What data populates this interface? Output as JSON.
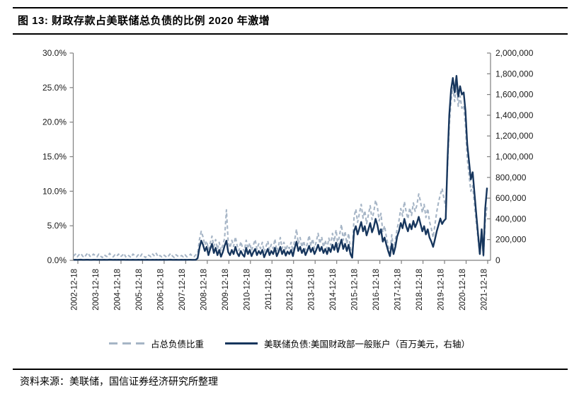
{
  "header": {
    "title": "图 13: 财政存款占美联储总负债的比例 2020 年激增"
  },
  "footer": {
    "source": "资料来源：美联储，国信证券经济研究所整理"
  },
  "chart_data": {
    "type": "line",
    "title": "财政存款占美联储总负债的比例 2020 年激增",
    "grid": false,
    "legend_position": "bottom",
    "x_start_year": 2002.958,
    "x_step_years": 0.083333,
    "x_tick_labels": [
      "2002-12-18",
      "2003-12-18",
      "2004-12-18",
      "2005-12-18",
      "2006-12-18",
      "2007-12-18",
      "2008-12-18",
      "2009-12-18",
      "2010-12-18",
      "2011-12-18",
      "2012-12-18",
      "2013-12-18",
      "2014-12-18",
      "2015-12-18",
      "2016-12-18",
      "2017-12-18",
      "2018-12-18",
      "2019-12-18",
      "2020-12-18",
      "2021-12-18"
    ],
    "left_axis": {
      "min": 0,
      "max": 30,
      "tick_labels": [
        "0.0%",
        "5.0%",
        "10.0%",
        "15.0%",
        "20.0%",
        "25.0%",
        "30.0%"
      ]
    },
    "right_axis": {
      "min": 0,
      "max": 2000000,
      "tick_labels": [
        "0",
        "200,000",
        "400,000",
        "600,000",
        "800,000",
        "1,000,000",
        "1,200,000",
        "1,400,000",
        "1,600,000",
        "1,800,000",
        "2,000,000"
      ]
    },
    "colors": {
      "dashed_series": "#a6b5c6",
      "solid_series": "#17365d",
      "axis": "#808080",
      "text": "#1a1a1a"
    },
    "series": [
      {
        "name": "占总负债比重",
        "axis": "left",
        "style": "dashed",
        "color": "#a6b5c6",
        "values": [
          0.6,
          0.9,
          0.5,
          0.8,
          1.0,
          0.6,
          0.4,
          0.8,
          1.1,
          0.6,
          0.5,
          0.9,
          0.7,
          0.5,
          0.9,
          0.6,
          0.4,
          0.8,
          0.6,
          0.5,
          1.0,
          0.7,
          0.5,
          0.8,
          0.6,
          0.9,
          0.5,
          0.7,
          1.0,
          0.5,
          0.8,
          0.6,
          0.4,
          0.9,
          0.7,
          0.5,
          0.8,
          0.5,
          0.9,
          0.6,
          0.4,
          0.8,
          0.7,
          0.5,
          0.9,
          0.6,
          1.0,
          0.5,
          0.7,
          0.5,
          0.8,
          0.6,
          0.4,
          0.7,
          1.0,
          0.6,
          0.4,
          0.8,
          0.6,
          0.5,
          0.7,
          0.5,
          0.8,
          0.5,
          0.6,
          0.9,
          0.6,
          0.5,
          0.8,
          1.0,
          3.0,
          4.2,
          3.4,
          2.2,
          2.8,
          1.6,
          2.5,
          3.5,
          2.0,
          3.0,
          1.6,
          2.6,
          1.4,
          2.2,
          3.2,
          7.3,
          2.6,
          1.8,
          2.9,
          2.0,
          3.4,
          2.1,
          1.4,
          2.7,
          1.8,
          1.3,
          2.9,
          1.7,
          2.5,
          1.4,
          2.2,
          3.0,
          1.6,
          2.4,
          1.7,
          2.6,
          1.2,
          2.0,
          2.8,
          1.5,
          2.3,
          1.7,
          3.1,
          1.3,
          2.1,
          3.3,
          1.7,
          2.6,
          1.4,
          2.2,
          1.7,
          2.6,
          1.3,
          3.0,
          4.5,
          2.4,
          3.3,
          1.9,
          2.8,
          1.5,
          2.4,
          3.6,
          2.1,
          3.1,
          1.7,
          2.7,
          3.9,
          2.4,
          3.4,
          1.9,
          2.9,
          1.7,
          3.2,
          2.2,
          3.9,
          2.7,
          4.4,
          2.2,
          3.7,
          5.2,
          2.9,
          4.2,
          2.4,
          3.9,
          1.7,
          0.8,
          6.3,
          7.4,
          5.5,
          6.8,
          8.1,
          6.1,
          7.2,
          5.3,
          6.6,
          7.9,
          5.9,
          7.0,
          8.7,
          7.7,
          5.7,
          6.8,
          4.1,
          5.0,
          3.4,
          2.1,
          1.0,
          3.7,
          1.4,
          3.0,
          4.6,
          5.7,
          7.5,
          6.4,
          8.5,
          7.0,
          6.0,
          7.6,
          6.5,
          8.3,
          7.1,
          8.0,
          9.6,
          8.5,
          6.9,
          8.1,
          6.2,
          7.5,
          5.6,
          4.6,
          3.3,
          5.1,
          7.0,
          8.4,
          9.5,
          10.4,
          9.0,
          7.7,
          13.5,
          19.5,
          23.2,
          25.0,
          23.0,
          25.3,
          22.3,
          23.8,
          22.0,
          22.4,
          19.5,
          14.8,
          12.3,
          10.0,
          10.8,
          8.1,
          5.6,
          3.1,
          0.7,
          3.5,
          0.6,
          5.6,
          7.9
        ]
      },
      {
        "name": "美联储负债:美国财政部一般账户（百万美元，右轴）",
        "axis": "right",
        "style": "solid",
        "color": "#17365d",
        "values": [
          5000,
          5500,
          4800,
          5200,
          6000,
          5100,
          4700,
          5300,
          5800,
          5000,
          4600,
          5400,
          5200,
          4900,
          5600,
          5100,
          4800,
          5500,
          5000,
          4700,
          5900,
          5200,
          4800,
          5300,
          5100,
          5600,
          4700,
          5200,
          5800,
          4900,
          5400,
          5000,
          4600,
          5500,
          5100,
          4800,
          5300,
          4900,
          5700,
          5000,
          4700,
          5600,
          5100,
          4800,
          5400,
          5000,
          5700,
          4900,
          5200,
          4800,
          5500,
          5100,
          4700,
          5300,
          5900,
          5000,
          4600,
          5400,
          5100,
          4900,
          5300,
          5000,
          5600,
          4900,
          5200,
          5700,
          5000,
          4800,
          5500,
          20000,
          120000,
          190000,
          150000,
          90000,
          130000,
          50000,
          110000,
          160000,
          70000,
          120000,
          50000,
          100000,
          35000,
          80000,
          140000,
          190000,
          80000,
          50000,
          100000,
          60000,
          130000,
          70000,
          40000,
          90000,
          55000,
          35000,
          120000,
          60000,
          100000,
          40000,
          80000,
          110000,
          50000,
          90000,
          60000,
          100000,
          30000,
          70000,
          110000,
          50000,
          90000,
          60000,
          120000,
          40000,
          80000,
          130000,
          60000,
          100000,
          45000,
          85000,
          60000,
          100000,
          40000,
          120000,
          180000,
          90000,
          130000,
          70000,
          110000,
          50000,
          90000,
          140000,
          80000,
          120000,
          60000,
          100000,
          150000,
          90000,
          130000,
          70000,
          110000,
          60000,
          120000,
          80000,
          150000,
          100000,
          170000,
          80000,
          140000,
          200000,
          110000,
          160000,
          90000,
          150000,
          60000,
          25000,
          280000,
          330000,
          250000,
          310000,
          370000,
          280000,
          330000,
          240000,
          300000,
          360000,
          270000,
          320000,
          400000,
          340000,
          250000,
          300000,
          180000,
          220000,
          150000,
          90000,
          40000,
          160000,
          60000,
          130000,
          230000,
          280000,
          360000,
          310000,
          400000,
          330000,
          280000,
          350000,
          300000,
          380000,
          320000,
          360000,
          420000,
          350000,
          280000,
          330000,
          250000,
          300000,
          220000,
          180000,
          130000,
          200000,
          280000,
          340000,
          404000,
          350000,
          380000,
          400000,
          960000,
          1400000,
          1650000,
          1760000,
          1620000,
          1780000,
          1580000,
          1680000,
          1600000,
          1620000,
          1440000,
          1120000,
          950000,
          780000,
          850000,
          650000,
          450000,
          250000,
          60000,
          300000,
          50000,
          500000,
          700000
        ]
      }
    ]
  }
}
